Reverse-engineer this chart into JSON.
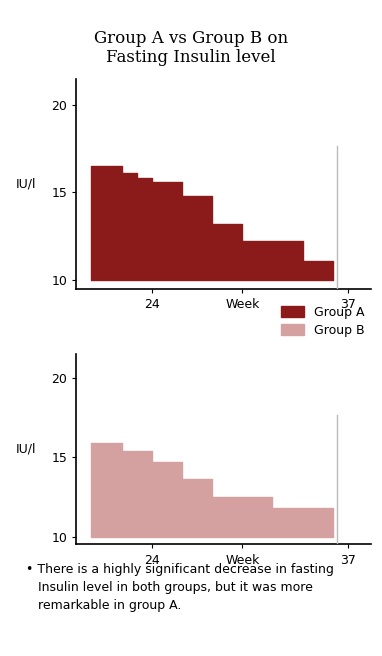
{
  "title": "Group A vs Group B on\nFasting Insulin level",
  "title_fontsize": 12,
  "group_a_color": "#8B1A1A",
  "group_b_color": "#D4A0A0",
  "vline_color": "#BBBBBB",
  "ylabel": "IU/l",
  "yticks": [
    10,
    15,
    20
  ],
  "xtick_positions": [
    24,
    30,
    37
  ],
  "xtick_labels": [
    "24",
    "Week",
    "37"
  ],
  "ylim": [
    9.5,
    21.5
  ],
  "xlim": [
    19.0,
    38.5
  ],
  "group_a_x": [
    20,
    21,
    22,
    23,
    24,
    25,
    26,
    27,
    28,
    29,
    30,
    31,
    32,
    33,
    34,
    35,
    36
  ],
  "group_a_y": [
    16.5,
    16.5,
    16.1,
    15.8,
    15.6,
    15.6,
    14.8,
    14.8,
    13.2,
    13.2,
    12.2,
    12.2,
    12.2,
    12.2,
    11.1,
    11.1,
    11.1
  ],
  "group_b_x": [
    20,
    21,
    22,
    23,
    24,
    25,
    26,
    27,
    28,
    29,
    30,
    31,
    32,
    33,
    34,
    35,
    36
  ],
  "group_b_y": [
    15.9,
    15.9,
    15.4,
    15.4,
    14.7,
    14.7,
    13.6,
    13.6,
    12.5,
    12.5,
    12.5,
    12.5,
    11.8,
    11.8,
    11.8,
    11.8,
    11.8
  ],
  "vline_x": 36.3,
  "annotation_text": "• There is a highly significant decrease in fasting\n   Insulin level in both groups, but it was more\n   remarkable in group A.",
  "annotation_fontsize": 9,
  "legend_labels": [
    "Group A",
    "Group B"
  ],
  "background_color": "#FFFFFF"
}
